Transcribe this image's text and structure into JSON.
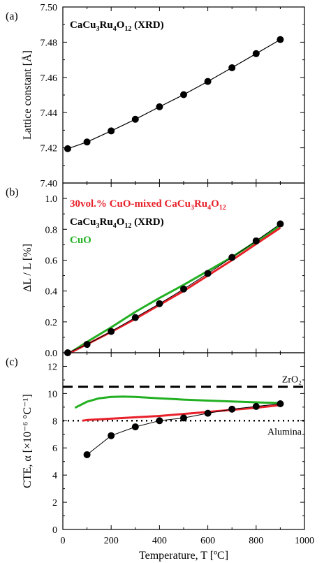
{
  "chart_data": [
    {
      "type": "scatter",
      "panel_label": "(a)",
      "annotation": {
        "parts": [
          "CaCu",
          "3",
          "Ru",
          "4",
          "O",
          "12",
          " (XRD)"
        ]
      },
      "ylabel": "Lattice constant [Å]",
      "ylim": [
        7.4,
        7.5
      ],
      "xlim": [
        0,
        1000
      ],
      "yticks": [
        7.4,
        7.42,
        7.44,
        7.46,
        7.48,
        7.5
      ],
      "ytick_labels": [
        "7.40",
        "7.42",
        "7.44",
        "7.46",
        "7.48",
        "7.50"
      ],
      "series": [
        {
          "color": "#000000",
          "marker": "circle",
          "line": true,
          "x": [
            20,
            100,
            200,
            300,
            400,
            500,
            600,
            700,
            800,
            900
          ],
          "y": [
            7.4195,
            7.4233,
            7.4296,
            7.4362,
            7.4433,
            7.4502,
            7.4577,
            7.4655,
            7.4735,
            7.4815
          ]
        }
      ]
    },
    {
      "type": "line",
      "panel_label": "(b)",
      "ylabel": "ΔL / L [%]",
      "ylim": [
        0,
        1.1
      ],
      "xlim": [
        0,
        1000
      ],
      "yticks": [
        0.0,
        0.2,
        0.4,
        0.6,
        0.8,
        1.0
      ],
      "ytick_labels": [
        "0.0",
        "0.2",
        "0.4",
        "0.6",
        "0.8",
        "1.0"
      ],
      "legend": [
        {
          "color": "#e8202a",
          "parts": [
            "30vol.% CuO-mixed CaCu",
            "3",
            "Ru",
            "4",
            "O",
            "12"
          ]
        },
        {
          "color": "#000000",
          "parts": [
            "CaCu",
            "3",
            "Ru",
            "4",
            "O",
            "12",
            " (XRD)"
          ]
        },
        {
          "color": "#22b022",
          "parts": [
            "CuO"
          ]
        }
      ],
      "series": [
        {
          "color": "#22b022",
          "marker": "none",
          "width": 3,
          "x": [
            30,
            100,
            200,
            300,
            400,
            500,
            600,
            700,
            800,
            900
          ],
          "y": [
            0.0,
            0.07,
            0.165,
            0.265,
            0.355,
            0.44,
            0.53,
            0.62,
            0.72,
            0.825
          ]
        },
        {
          "color": "#e8202a",
          "marker": "none",
          "width": 3,
          "x": [
            30,
            100,
            200,
            300,
            400,
            500,
            600,
            700,
            800,
            900
          ],
          "y": [
            0.0,
            0.055,
            0.135,
            0.22,
            0.31,
            0.4,
            0.5,
            0.6,
            0.705,
            0.81
          ]
        },
        {
          "color": "#000000",
          "marker": "circle",
          "width": 1,
          "x": [
            20,
            100,
            200,
            300,
            400,
            500,
            600,
            700,
            800,
            900
          ],
          "y": [
            0.0,
            0.054,
            0.138,
            0.228,
            0.318,
            0.413,
            0.514,
            0.618,
            0.725,
            0.835
          ]
        }
      ]
    },
    {
      "type": "line",
      "panel_label": "(c)",
      "ylabel": "CTE, α [×10⁻⁶ °C⁻¹]",
      "xlabel": "Temperature, T [ºC]",
      "ylim": [
        0,
        13
      ],
      "xlim": [
        0,
        1000
      ],
      "yticks": [
        0,
        2,
        4,
        6,
        8,
        10,
        12
      ],
      "ytick_labels": [
        "0",
        "2",
        "4",
        "6",
        "8",
        "10",
        "12"
      ],
      "xticks": [
        0,
        200,
        400,
        600,
        800,
        1000
      ],
      "xtick_labels": [
        "0",
        "200",
        "400",
        "600",
        "800",
        "1000"
      ],
      "references": [
        {
          "name": "ZrO₂",
          "value": 10.5,
          "style": "dashed",
          "color": "#000000"
        },
        {
          "name": "Alumina",
          "value": 8.0,
          "style": "dotted",
          "color": "#000000"
        }
      ],
      "series": [
        {
          "color": "#22b022",
          "marker": "none",
          "width": 3,
          "x": [
            50,
            100,
            150,
            200,
            250,
            300,
            400,
            500,
            600,
            700,
            800,
            900
          ],
          "y": [
            8.95,
            9.4,
            9.65,
            9.75,
            9.78,
            9.75,
            9.65,
            9.55,
            9.48,
            9.42,
            9.35,
            9.3
          ]
        },
        {
          "color": "#e8202a",
          "marker": "none",
          "width": 3,
          "x": [
            80,
            100,
            200,
            300,
            400,
            500,
            600,
            700,
            800,
            900
          ],
          "y": [
            8.0,
            8.05,
            8.15,
            8.25,
            8.35,
            8.5,
            8.65,
            8.8,
            8.95,
            9.15
          ]
        },
        {
          "color": "#000000",
          "marker": "circle",
          "width": 1,
          "x": [
            100,
            200,
            300,
            400,
            500,
            600,
            700,
            800,
            900
          ],
          "y": [
            5.5,
            6.9,
            7.55,
            8.0,
            8.2,
            8.55,
            8.85,
            9.05,
            9.25
          ]
        }
      ]
    }
  ]
}
